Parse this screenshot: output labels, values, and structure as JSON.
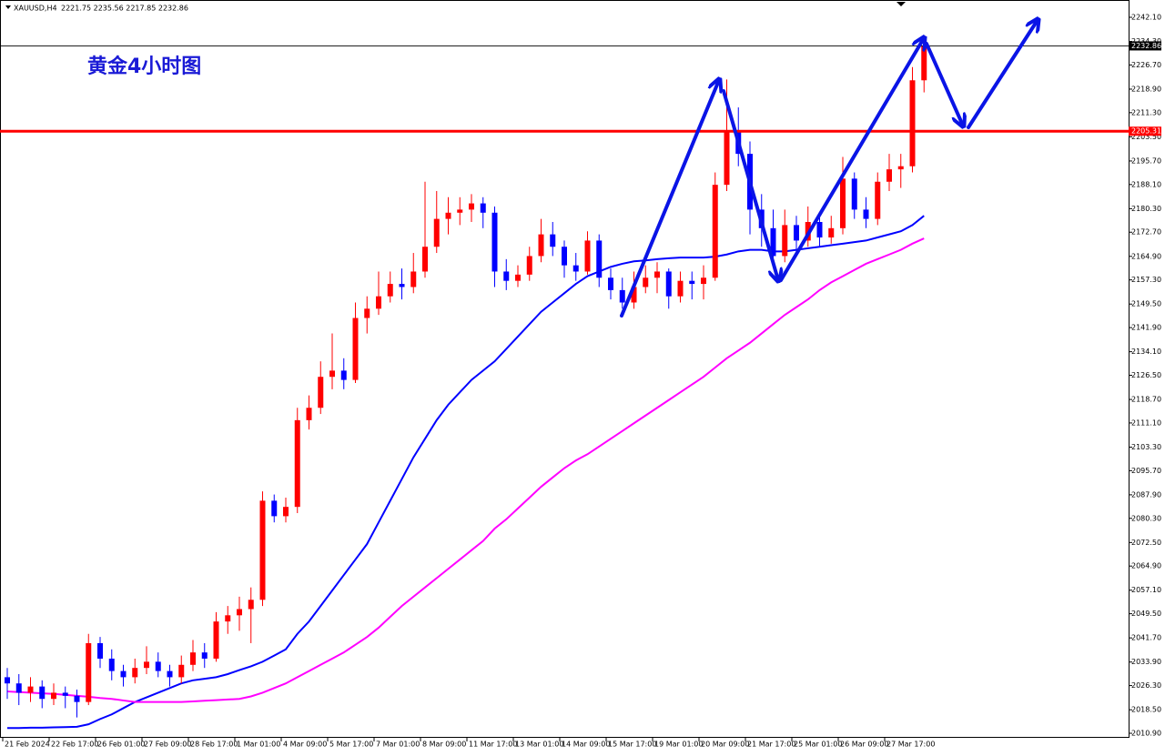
{
  "chart_data": {
    "type": "candlestick",
    "header": {
      "symbol": "XAUUSD,H4",
      "ohlc": "2221.75 2235.56 2217.85 2232.86"
    },
    "title": "黄金4小时图",
    "xticks": [
      {
        "value": 0,
        "label": "21 Feb 2024"
      },
      {
        "value": 4,
        "label": "22 Feb 17:00"
      },
      {
        "value": 8,
        "label": "26 Feb 01:00"
      },
      {
        "value": 12,
        "label": "27 Feb 09:00"
      },
      {
        "value": 16,
        "label": "28 Feb 17:00"
      },
      {
        "value": 20,
        "label": "1 Mar 01:00"
      },
      {
        "value": 24,
        "label": "4 Mar 09:00"
      },
      {
        "value": 28,
        "label": "5 Mar 17:00"
      },
      {
        "value": 32,
        "label": "7 Mar 01:00"
      },
      {
        "value": 36,
        "label": "8 Mar 09:00"
      },
      {
        "value": 40,
        "label": "11 Mar 17:00"
      },
      {
        "value": 44,
        "label": "13 Mar 01:00"
      },
      {
        "value": 48,
        "label": "14 Mar 09:00"
      },
      {
        "value": 52,
        "label": "15 Mar 17:00"
      },
      {
        "value": 56,
        "label": "19 Mar 01:00"
      },
      {
        "value": 60,
        "label": "20 Mar 09:00"
      },
      {
        "value": 64,
        "label": "21 Mar 17:00"
      },
      {
        "value": 68,
        "label": "25 Mar 01:00"
      },
      {
        "value": 72,
        "label": "26 Mar 09:00"
      },
      {
        "value": 76,
        "label": "27 Mar 17:00"
      }
    ],
    "ylim": [
      2009.73,
      2247.68
    ],
    "yticks": [
      {
        "value": 2242.1,
        "label": "2242.10"
      },
      {
        "value": 2234.3,
        "label": "2234.30"
      },
      {
        "value": 2226.7,
        "label": "2226.70"
      },
      {
        "value": 2218.9,
        "label": "2218.90"
      },
      {
        "value": 2211.3,
        "label": "2211.30"
      },
      {
        "value": 2203.5,
        "label": "2203.50"
      },
      {
        "value": 2195.7,
        "label": "2195.70"
      },
      {
        "value": 2188.1,
        "label": "2188.10"
      },
      {
        "value": 2180.3,
        "label": "2180.30"
      },
      {
        "value": 2172.7,
        "label": "2172.70"
      },
      {
        "value": 2164.9,
        "label": "2164.90"
      },
      {
        "value": 2157.3,
        "label": "2157.30"
      },
      {
        "value": 2149.5,
        "label": "2149.50"
      },
      {
        "value": 2141.9,
        "label": "2141.90"
      },
      {
        "value": 2134.1,
        "label": "2134.10"
      },
      {
        "value": 2126.5,
        "label": "2126.50"
      },
      {
        "value": 2118.7,
        "label": "2118.70"
      },
      {
        "value": 2111.1,
        "label": "2111.10"
      },
      {
        "value": 2103.3,
        "label": "2103.30"
      },
      {
        "value": 2095.7,
        "label": "2095.70"
      },
      {
        "value": 2087.9,
        "label": "2087.90"
      },
      {
        "value": 2080.3,
        "label": "2080.30"
      },
      {
        "value": 2072.5,
        "label": "2072.50"
      },
      {
        "value": 2064.9,
        "label": "2064.90"
      },
      {
        "value": 2057.1,
        "label": "2057.10"
      },
      {
        "value": 2049.5,
        "label": "2049.50"
      },
      {
        "value": 2041.7,
        "label": "2041.70"
      },
      {
        "value": 2033.9,
        "label": "2033.90"
      },
      {
        "value": 2026.3,
        "label": "2026.30"
      },
      {
        "value": 2018.5,
        "label": "2018.50"
      },
      {
        "value": 2010.9,
        "label": "2010.90"
      }
    ],
    "up_color": "#ff0000",
    "down_color": "#0000ff",
    "open": [
      2029,
      2027,
      2024,
      2026,
      2022,
      2024,
      2023,
      2021,
      2040,
      2035,
      2031,
      2029,
      2032,
      2034,
      2031,
      2029,
      2033,
      2037,
      2035,
      2047,
      2049,
      2051,
      2054,
      2086,
      2081,
      2084,
      2112,
      2116,
      2126,
      2128,
      2125,
      2145,
      2148,
      2152,
      2156,
      2155,
      2160,
      2168,
      2177,
      2179,
      2180,
      2182,
      2179,
      2160,
      2157,
      2159,
      2165,
      2172,
      2168,
      2162,
      2160,
      2170,
      2158,
      2154,
      2150,
      2155,
      2158,
      2160,
      2152,
      2157,
      2156,
      2158,
      2188,
      2205,
      2198,
      2180,
      2174,
      2165,
      2175,
      2170,
      2176,
      2171,
      2174,
      2190,
      2180,
      2177,
      2189,
      2193,
      2194,
      2221.75
    ],
    "high": [
      2032,
      2030,
      2029,
      2028,
      2027,
      2026,
      2025,
      2043,
      2042,
      2038,
      2033,
      2035,
      2039,
      2037,
      2033,
      2036,
      2041,
      2040,
      2050,
      2052,
      2055,
      2058,
      2089,
      2088,
      2087,
      2116,
      2120,
      2131,
      2140,
      2132,
      2150,
      2152,
      2160,
      2160,
      2161,
      2166,
      2189,
      2186,
      2184,
      2184,
      2185,
      2184,
      2181,
      2164,
      2162,
      2168,
      2177,
      2176,
      2170,
      2166,
      2173,
      2172,
      2161,
      2158,
      2160,
      2162,
      2163,
      2161,
      2160,
      2160,
      2162,
      2192,
      2222,
      2213,
      2202,
      2185,
      2180,
      2180,
      2178,
      2181,
      2178,
      2178,
      2197,
      2192,
      2184,
      2192,
      2198,
      2198,
      2226,
      2235.56
    ],
    "low": [
      2022,
      2020,
      2021,
      2019,
      2020,
      2019,
      2016,
      2020,
      2032,
      2028,
      2026,
      2027,
      2030,
      2029,
      2026,
      2027,
      2031,
      2032,
      2034,
      2043,
      2044,
      2040,
      2052,
      2079,
      2079,
      2082,
      2109,
      2114,
      2122,
      2122,
      2124,
      2140,
      2146,
      2150,
      2151,
      2153,
      2158,
      2166,
      2172,
      2175,
      2176,
      2174,
      2155,
      2154,
      2155,
      2157,
      2163,
      2165,
      2158,
      2157,
      2159,
      2155,
      2151,
      2148,
      2148,
      2153,
      2153,
      2148,
      2150,
      2151,
      2151,
      2157,
      2186,
      2194,
      2172,
      2168,
      2163,
      2163,
      2166,
      2168,
      2168,
      2169,
      2172,
      2177,
      2174,
      2175,
      2186,
      2187,
      2192,
      2217.85
    ],
    "close": [
      2027,
      2024,
      2026,
      2022,
      2024,
      2023,
      2021,
      2040,
      2035,
      2031,
      2029,
      2032,
      2034,
      2031,
      2029,
      2033,
      2037,
      2035,
      2047,
      2049,
      2051,
      2054,
      2086,
      2081,
      2084,
      2112,
      2116,
      2126,
      2128,
      2125,
      2145,
      2148,
      2152,
      2156,
      2155,
      2160,
      2168,
      2177,
      2179,
      2180,
      2182,
      2179,
      2160,
      2157,
      2159,
      2165,
      2172,
      2168,
      2162,
      2160,
      2170,
      2158,
      2154,
      2150,
      2155,
      2158,
      2160,
      2152,
      2157,
      2156,
      2158,
      2188,
      2205,
      2198,
      2180,
      2174,
      2165,
      2175,
      2170,
      2176,
      2171,
      2174,
      2190,
      2180,
      2177,
      2189,
      2193,
      2194,
      2221.75,
      2232.86
    ],
    "lines": [
      {
        "color": "#0000ff",
        "values": [
          2012.6,
          2012.6,
          2012.7,
          2012.7,
          2012.8,
          2012.9,
          2013,
          2013.8,
          2015.5,
          2017,
          2019,
          2021,
          2022.5,
          2024,
          2025.5,
          2027,
          2028,
          2028.5,
          2029,
          2030,
          2031.3,
          2032.5,
          2034,
          2036,
          2038,
          2043,
          2047,
          2052,
          2057,
          2062,
          2067,
          2072,
          2079,
          2086,
          2093,
          2100,
          2106,
          2112,
          2117,
          2121,
          2125,
          2128,
          2131,
          2135,
          2139,
          2143,
          2147,
          2150,
          2153,
          2156,
          2158.5,
          2160,
          2161.5,
          2162.5,
          2163.3,
          2163.6,
          2164,
          2164.3,
          2164.5,
          2164.5,
          2164.5,
          2164.8,
          2165.5,
          2166.5,
          2167,
          2167,
          2166.5,
          2166.5,
          2167,
          2167.5,
          2168,
          2168.5,
          2169,
          2169.5,
          2170,
          2171,
          2172,
          2173,
          2175,
          2178
        ]
      },
      {
        "color": "#ff00ff",
        "values": [
          2024.4,
          2024.2,
          2024,
          2023.8,
          2023.6,
          2023.3,
          2023,
          2022.7,
          2022.3,
          2022,
          2021.5,
          2021,
          2021,
          2021,
          2021,
          2021,
          2021.2,
          2021.4,
          2021.6,
          2021.8,
          2022,
          2022.8,
          2024,
          2025.5,
          2027,
          2029,
          2031,
          2033,
          2035,
          2037,
          2039.5,
          2042,
          2045,
          2048.5,
          2052,
          2055,
          2058,
          2061,
          2064,
          2067,
          2070,
          2073,
          2077,
          2080,
          2083.5,
          2087,
          2090.5,
          2093.5,
          2096.5,
          2099,
          2101,
          2103.5,
          2106,
          2108.5,
          2111,
          2113.5,
          2116,
          2118.5,
          2121,
          2123.5,
          2126,
          2129,
          2132,
          2134.5,
          2137,
          2140,
          2143,
          2146,
          2148.5,
          2151,
          2154,
          2156.5,
          2158.5,
          2160.5,
          2162.5,
          2164,
          2165.5,
          2167,
          2169,
          2170.7
        ]
      }
    ],
    "hlines": [
      {
        "value": 2205.31,
        "color": "#ff0000"
      }
    ],
    "current_price": 2232.86
  }
}
